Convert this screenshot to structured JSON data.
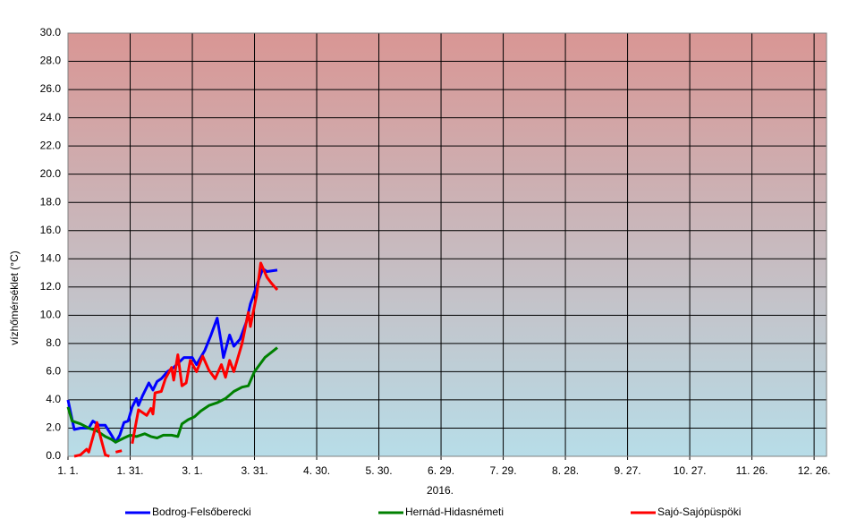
{
  "chart_data": {
    "type": "line",
    "ylabel": "vízhőmérséklet  (°C)",
    "xlabel": "2016.",
    "xlim": [
      0,
      366
    ],
    "xticks": [
      {
        "value": 0,
        "label": "1. 1."
      },
      {
        "value": 30,
        "label": "1. 31."
      },
      {
        "value": 60,
        "label": "3. 1."
      },
      {
        "value": 90,
        "label": "3. 31."
      },
      {
        "value": 120,
        "label": "4. 30."
      },
      {
        "value": 150,
        "label": "5. 30."
      },
      {
        "value": 180,
        "label": "6. 29."
      },
      {
        "value": 210,
        "label": "7. 29."
      },
      {
        "value": 240,
        "label": "8. 28."
      },
      {
        "value": 270,
        "label": "9. 27."
      },
      {
        "value": 300,
        "label": "10. 27."
      },
      {
        "value": 330,
        "label": "11. 26."
      },
      {
        "value": 360,
        "label": "12. 26."
      }
    ],
    "ylim": [
      0,
      30
    ],
    "yticks": [
      {
        "value": 0,
        "label": "0.0"
      },
      {
        "value": 2,
        "label": "2.0"
      },
      {
        "value": 4,
        "label": "4.0"
      },
      {
        "value": 6,
        "label": "6.0"
      },
      {
        "value": 8,
        "label": "8.0"
      },
      {
        "value": 10,
        "label": "10.0"
      },
      {
        "value": 12,
        "label": "12.0"
      },
      {
        "value": 14,
        "label": "14.0"
      },
      {
        "value": 16,
        "label": "16.0"
      },
      {
        "value": 18,
        "label": "18.0"
      },
      {
        "value": 20,
        "label": "20.0"
      },
      {
        "value": 22,
        "label": "22.0"
      },
      {
        "value": 24,
        "label": "24.0"
      },
      {
        "value": 26,
        "label": "26.0"
      },
      {
        "value": 28,
        "label": "28.0"
      },
      {
        "value": 30,
        "label": "30.0"
      }
    ],
    "grid": true,
    "series": [
      {
        "name": "Bodrog-Felsőberecki",
        "color": "#0000ff",
        "x": [
          0,
          3,
          6,
          10,
          12,
          15,
          18,
          21,
          23,
          25,
          27,
          29,
          31,
          33,
          34,
          36,
          39,
          41,
          43,
          45,
          48,
          51,
          56,
          60,
          62,
          66,
          69,
          72,
          74,
          75,
          78,
          80,
          83,
          86,
          88,
          89,
          92,
          94,
          96,
          101
        ],
        "values": [
          4.0,
          1.9,
          2.0,
          2.0,
          2.5,
          2.2,
          2.2,
          1.5,
          1.0,
          1.5,
          2.4,
          2.5,
          3.5,
          4.1,
          3.6,
          4.3,
          5.2,
          4.7,
          5.3,
          5.5,
          6.0,
          6.3,
          7.0,
          7.0,
          6.5,
          7.5,
          8.6,
          9.8,
          8.0,
          7.0,
          8.6,
          7.8,
          8.3,
          9.5,
          10.8,
          11.2,
          12.5,
          13.3,
          13.1,
          13.2
        ]
      },
      {
        "name": "Hernád-Hidasnémeti",
        "color": "#008000",
        "x": [
          0,
          2,
          6,
          10,
          14,
          18,
          21,
          23,
          27,
          30,
          33,
          37,
          40,
          43,
          46,
          50,
          53,
          55,
          58,
          61,
          64,
          68,
          72,
          76,
          80,
          84,
          87,
          90,
          95,
          101
        ],
        "values": [
          3.5,
          2.5,
          2.3,
          2.0,
          1.8,
          1.4,
          1.2,
          1.0,
          1.3,
          1.5,
          1.4,
          1.6,
          1.4,
          1.3,
          1.5,
          1.5,
          1.4,
          2.3,
          2.6,
          2.8,
          3.2,
          3.6,
          3.8,
          4.1,
          4.6,
          4.9,
          5.0,
          6.0,
          7.0,
          7.7
        ]
      },
      {
        "name": "Sajó-Sajópüspöki",
        "color": "#ff0000",
        "x": [
          3,
          6,
          9,
          10,
          14,
          16,
          18,
          20,
          21,
          23,
          26,
          28,
          31,
          34,
          38,
          40,
          41,
          42,
          45,
          47,
          50,
          51,
          53,
          55,
          57,
          59,
          62,
          65,
          68,
          71,
          74,
          76,
          78,
          80,
          84,
          87,
          88,
          91,
          93,
          96,
          98,
          101
        ],
        "values": [
          0.0,
          0.1,
          0.5,
          0.3,
          2.4,
          1.2,
          0.1,
          0.0,
          null,
          0.3,
          0.4,
          null,
          0.9,
          3.3,
          2.9,
          3.4,
          3.0,
          4.5,
          4.6,
          5.5,
          6.3,
          5.4,
          7.2,
          5.0,
          5.2,
          6.8,
          6.0,
          7.1,
          6.1,
          5.5,
          6.5,
          5.6,
          6.8,
          6.0,
          8.0,
          10.2,
          9.2,
          11.4,
          13.7,
          12.7,
          12.3,
          11.8
        ]
      }
    ]
  }
}
